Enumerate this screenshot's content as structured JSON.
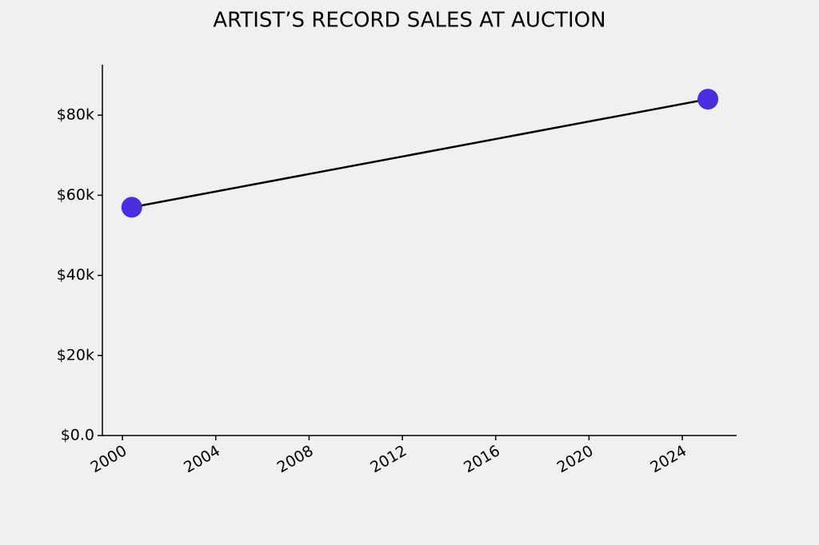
{
  "chart_data": {
    "type": "line",
    "title": "ARTIST’S RECORD SALES AT AUCTION",
    "x": [
      2000.4,
      2025.1
    ],
    "series": [
      {
        "color": "#4a2fe0",
        "line_color": "#000000",
        "values": [
          57000,
          84000
        ]
      }
    ],
    "xlim": [
      1999.14,
      2026.33
    ],
    "xticks": [
      2000,
      2004,
      2008,
      2012,
      2016,
      2020,
      2024
    ],
    "ylim": [
      0,
      92600
    ],
    "yticks": [
      {
        "value": 0,
        "label": "$0.0"
      },
      {
        "value": 20000,
        "label": "$20k"
      },
      {
        "value": 40000,
        "label": "$40k"
      },
      {
        "value": 60000,
        "label": "$60k"
      },
      {
        "value": 80000,
        "label": "$80k"
      }
    ],
    "grid": false
  }
}
